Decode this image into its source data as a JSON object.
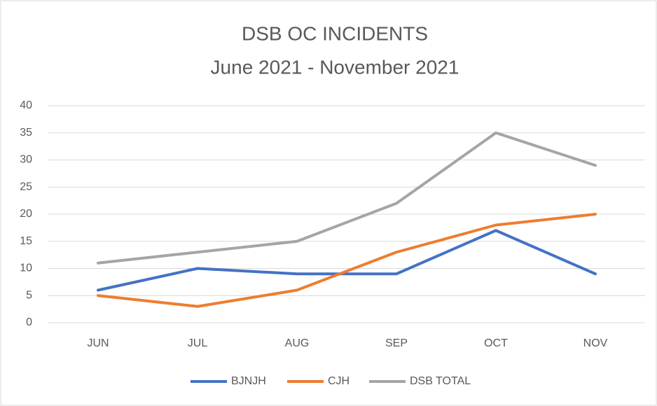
{
  "chart_data": {
    "type": "line",
    "title": "DSB OC INCIDENTS",
    "subtitle": "June 2021 - November 2021",
    "categories": [
      "JUN",
      "JUL",
      "AUG",
      "SEP",
      "OCT",
      "NOV"
    ],
    "series": [
      {
        "name": "BJNJH",
        "color": "#4472c4",
        "values": [
          6,
          10,
          9,
          9,
          17,
          9
        ]
      },
      {
        "name": "CJH",
        "color": "#ed7d31",
        "values": [
          5,
          3,
          6,
          13,
          18,
          20
        ]
      },
      {
        "name": "DSB TOTAL",
        "color": "#a5a5a5",
        "values": [
          11,
          13,
          15,
          22,
          35,
          29
        ]
      }
    ],
    "ylim": [
      0,
      40
    ],
    "yticks": [
      0,
      5,
      10,
      15,
      20,
      25,
      30,
      35,
      40
    ],
    "grid": true,
    "legend": "bottom"
  }
}
